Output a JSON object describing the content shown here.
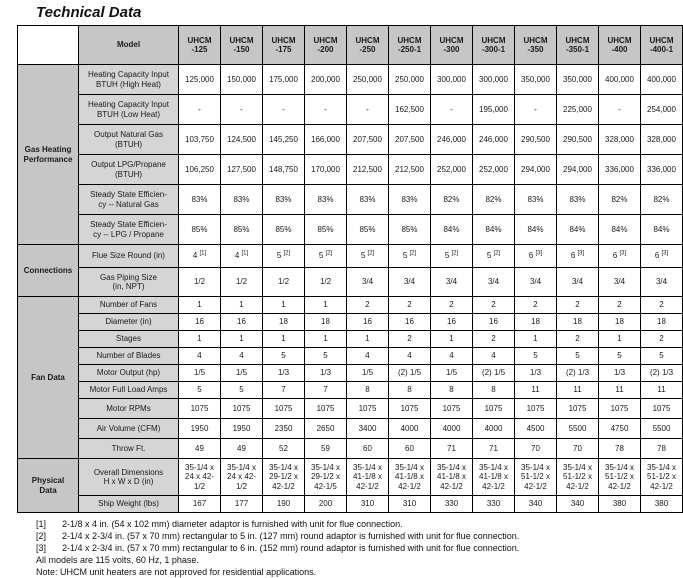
{
  "title": "Technical Data",
  "table": {
    "corner_label": "Model",
    "model_prefix": "UHCM",
    "model_suffixes": [
      "-125",
      "-150",
      "-175",
      "-200",
      "-250",
      "-250-1",
      "-300",
      "-300-1",
      "-350",
      "-350-1",
      "-400",
      "-400-1"
    ],
    "sections": [
      {
        "label": "Gas Heating\nPerformance",
        "rows": [
          {
            "label": "Heating Capacity Input\nBTUH (High Heat)",
            "values": [
              "125,000",
              "150,000",
              "175,000",
              "200,000",
              "250,000",
              "250,000",
              "300,000",
              "300,000",
              "350,000",
              "350,000",
              "400,000",
              "400,000"
            ]
          },
          {
            "label": "Heating Capacity Input\nBTUH (Low Heat)",
            "values": [
              "-",
              "-",
              "-",
              "-",
              "-",
              "162,500",
              "-",
              "195,000",
              "-",
              "225,000",
              "-",
              "254,000"
            ]
          },
          {
            "label": "Output Natural Gas\n(BTUH)",
            "values": [
              "103,750",
              "124,500",
              "145,250",
              "166,000",
              "207,500",
              "207,500",
              "246,000",
              "246,000",
              "290,500",
              "290,500",
              "328,000",
              "328,000"
            ]
          },
          {
            "label": "Output LPG/Propane\n(BTUH)",
            "values": [
              "106,250",
              "127,500",
              "148,750",
              "170,000",
              "212,500",
              "212,500",
              "252,000",
              "252,000",
              "294,000",
              "294,000",
              "336,000",
              "336,000"
            ]
          },
          {
            "label": "Steady State Efficien-\ncy -- Natural Gas",
            "values": [
              "83%",
              "83%",
              "83%",
              "83%",
              "83%",
              "83%",
              "82%",
              "82%",
              "83%",
              "83%",
              "82%",
              "82%"
            ]
          },
          {
            "label": "Steady State Efficien-\ncy -- LPG / Propane",
            "values": [
              "85%",
              "85%",
              "85%",
              "85%",
              "85%",
              "85%",
              "84%",
              "84%",
              "84%",
              "84%",
              "84%",
              "84%"
            ]
          }
        ]
      },
      {
        "label": "Connections",
        "rows": [
          {
            "label": "Flue Size Round (in)",
            "values": [
              "4^[1]",
              "4^[1]",
              "5^[2]",
              "5^[2]",
              "5^[2]",
              "5^[2]",
              "5^[2]",
              "5^[2]",
              "6^[3]",
              "6^[3]",
              "6^[3]",
              "6^[3]"
            ]
          },
          {
            "label": "Gas Piping Size\n(in, NPT)",
            "values": [
              "1/2",
              "1/2",
              "1/2",
              "1/2",
              "3/4",
              "3/4",
              "3/4",
              "3/4",
              "3/4",
              "3/4",
              "3/4",
              "3/4"
            ]
          }
        ]
      },
      {
        "label": "Fan Data",
        "rows": [
          {
            "label": "Number of Fans",
            "values": [
              "1",
              "1",
              "1",
              "1",
              "2",
              "2",
              "2",
              "2",
              "2",
              "2",
              "2",
              "2"
            ]
          },
          {
            "label": "Diameter (in)",
            "values": [
              "16",
              "16",
              "18",
              "18",
              "16",
              "16",
              "16",
              "16",
              "18",
              "18",
              "18",
              "18"
            ]
          },
          {
            "label": "Stages",
            "values": [
              "1",
              "1",
              "1",
              "1",
              "1",
              "2",
              "1",
              "2",
              "1",
              "2",
              "1",
              "2"
            ]
          },
          {
            "label": "Number of Blades",
            "values": [
              "4",
              "4",
              "5",
              "5",
              "4",
              "4",
              "4",
              "4",
              "5",
              "5",
              "5",
              "5"
            ]
          },
          {
            "label": "Motor Output (hp)",
            "values": [
              "1/5",
              "1/5",
              "1/3",
              "1/3",
              "1/5",
              "(2) 1/5",
              "1/5",
              "(2) 1/5",
              "1/3",
              "(2) 1/3",
              "1/3",
              "(2) 1/3"
            ]
          },
          {
            "label": "Motor Full Load Amps",
            "values": [
              "5",
              "5",
              "7",
              "7",
              "8",
              "8",
              "8",
              "8",
              "11",
              "11",
              "11",
              "11"
            ]
          },
          {
            "label": "Motor RPMs",
            "values": [
              "1075",
              "1075",
              "1075",
              "1075",
              "1075",
              "1075",
              "1075",
              "1075",
              "1075",
              "1075",
              "1075",
              "1075"
            ]
          },
          {
            "label": "Air Volume (CFM)",
            "values": [
              "1950",
              "1950",
              "2350",
              "2650",
              "3400",
              "4000",
              "4000",
              "4000",
              "4500",
              "5500",
              "4750",
              "5500"
            ]
          },
          {
            "label": "Throw Ft.",
            "values": [
              "49",
              "49",
              "52",
              "59",
              "60",
              "60",
              "71",
              "71",
              "70",
              "70",
              "78",
              "78"
            ]
          }
        ]
      },
      {
        "label": "Physical\nData",
        "rows": [
          {
            "label": "Overall Dimensions\nH x W x D (in)",
            "values": [
              "35-1/4 x\n24 x 42-\n1/2",
              "35-1/4 x\n24 x 42-\n1/2",
              "35-1/4 x\n29-1/2 x\n42-1/2",
              "35-1/4 x\n29-1/2 x\n42-1/5",
              "35-1/4 x\n41-1/8 x\n42-1/2",
              "35-1/4 x\n41-1/8 x\n42-1/2",
              "35-1/4 x\n41-1/8 x\n42-1/2",
              "35-1/4 x\n41-1/8 x\n42-1/2",
              "35-1/4 x\n51-1/2 x\n42-1/2",
              "35-1/4 x\n51-1/2 x\n42-1/2",
              "35-1/4 x\n51-1/2 x\n42-1/2",
              "35-1/4 x\n51-1/2 x\n42-1/2"
            ]
          },
          {
            "label": "Ship Weight (lbs)",
            "values": [
              "167",
              "177",
              "190",
              "200",
              "310",
              "310",
              "330",
              "330",
              "340",
              "340",
              "380",
              "380"
            ]
          }
        ]
      }
    ]
  },
  "footnotes": [
    {
      "marker": "[1]",
      "text": "2-1/8 x 4 in. (54 x 102 mm) diameter adaptor is furnished with unit for flue connection."
    },
    {
      "marker": "[2]",
      "text": "2-1/4 x 2-3/4 in. (57 x 70 mm) rectangular to 5 in. (127 mm) round adaptor is furnished with unit for flue connection."
    },
    {
      "marker": "[3]",
      "text": "2-1/4 x 2-3/4 in. (57 x 70 mm) rectangular to 6 in. (152 mm) round adaptor is furnished with unit for flue connection."
    }
  ],
  "notes": [
    "All models are 115 volts, 60 Hz, 1 phase.",
    "Note: UHCM unit heaters are not approved for residential applications."
  ]
}
